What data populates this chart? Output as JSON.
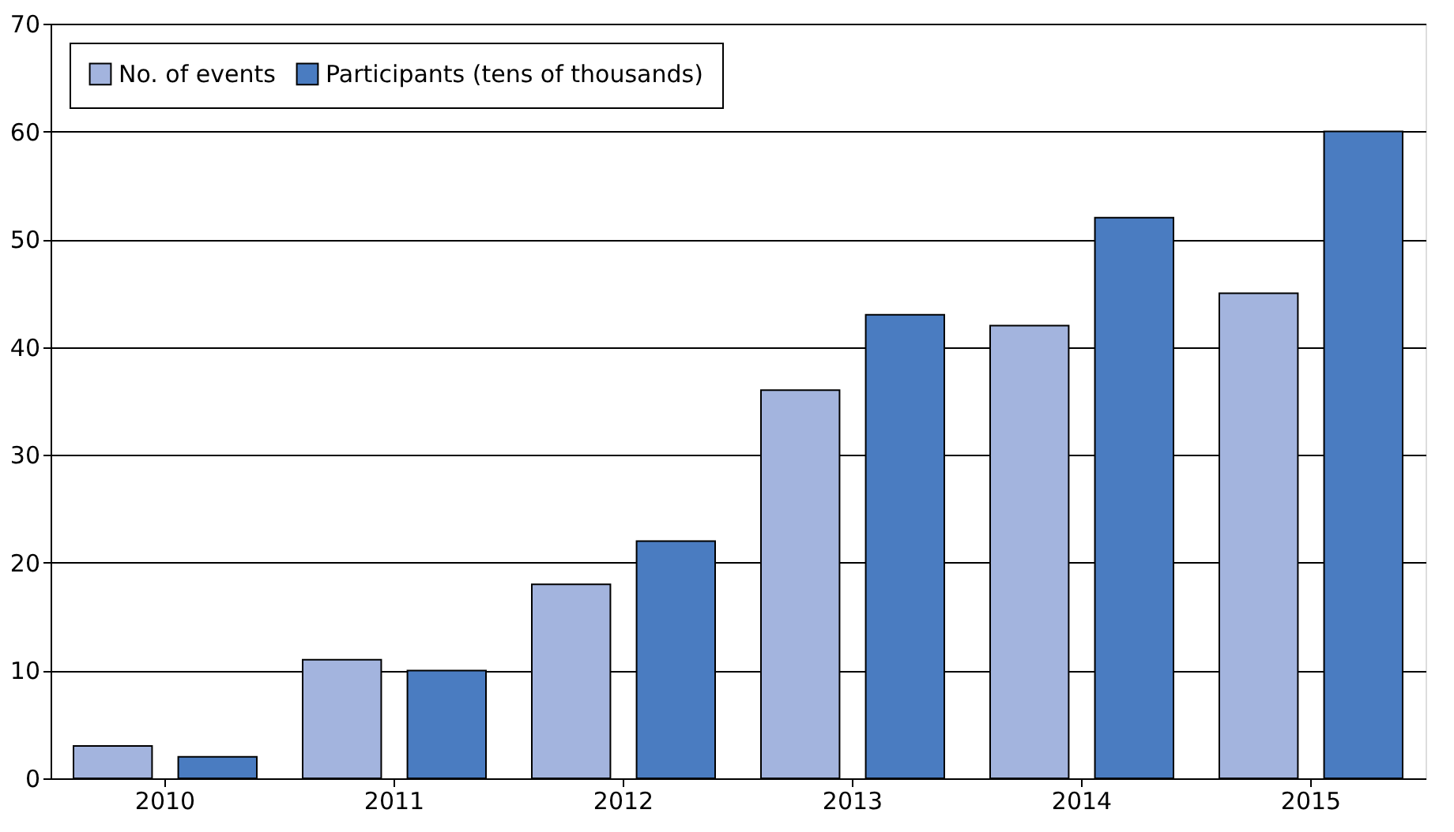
{
  "chart_data": {
    "type": "bar",
    "categories": [
      "2010",
      "2011",
      "2012",
      "2013",
      "2014",
      "2015"
    ],
    "series": [
      {
        "name": "No. of events",
        "color": "#a3b4de",
        "values": [
          3,
          11,
          18,
          36,
          42,
          45
        ]
      },
      {
        "name": "Participants (tens of thousands)",
        "color": "#4a7cc1",
        "values": [
          2,
          10,
          22,
          43,
          52,
          60
        ]
      }
    ],
    "ylim": [
      0,
      70
    ],
    "yticks": [
      0,
      10,
      20,
      30,
      40,
      50,
      60,
      70
    ],
    "grid": "y",
    "legend": "top left"
  }
}
